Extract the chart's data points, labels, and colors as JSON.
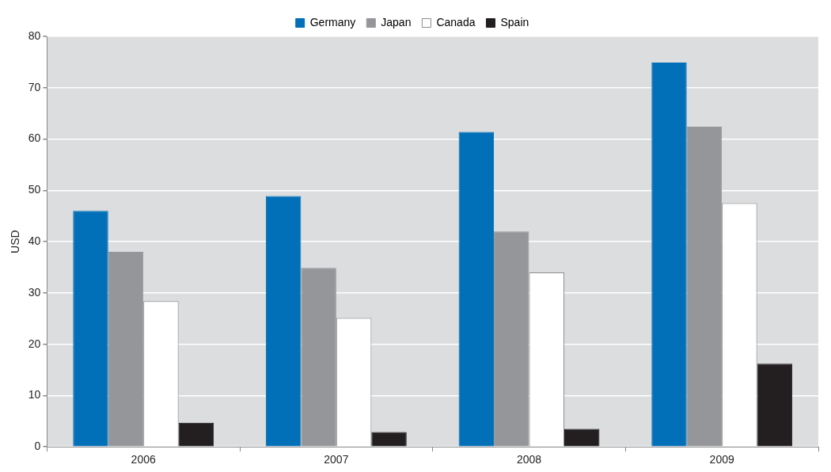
{
  "chart_data": {
    "type": "bar",
    "ylabel": "USD",
    "categories": [
      "2006",
      "2007",
      "2008",
      "2009"
    ],
    "series": [
      {
        "name": "Germany",
        "color": "#0270b8",
        "values": [
          46.0,
          48.9,
          61.4,
          74.9
        ]
      },
      {
        "name": "Japan",
        "color": "#959699",
        "values": [
          38.0,
          34.9,
          42.0,
          62.4
        ]
      },
      {
        "name": "Canada",
        "color": "#ffffff",
        "values": [
          28.4,
          25.1,
          34.0,
          47.5
        ]
      },
      {
        "name": "Spain",
        "color": "#231f20",
        "values": [
          4.7,
          2.9,
          3.5,
          16.2
        ]
      }
    ],
    "ylim": [
      0,
      80
    ],
    "yticks": [
      0,
      10,
      20,
      30,
      40,
      50,
      60,
      70,
      80
    ],
    "grid": "y",
    "legend": "top"
  }
}
